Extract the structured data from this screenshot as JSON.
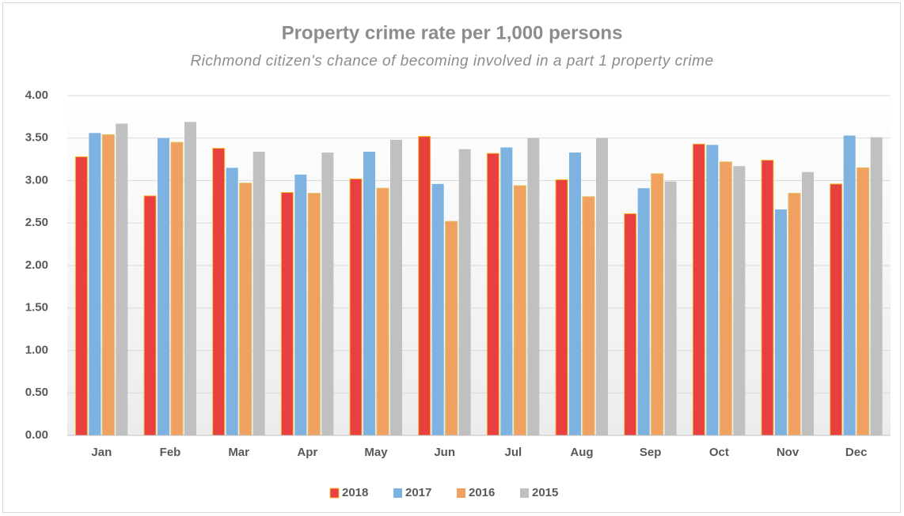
{
  "chart_data": {
    "type": "bar",
    "title": "Property crime rate per 1,000 persons",
    "subtitle": "Richmond citizen's chance of becoming involved in a part 1 property crime",
    "categories": [
      "Jan",
      "Feb",
      "Mar",
      "Apr",
      "May",
      "Jun",
      "Jul",
      "Aug",
      "Sep",
      "Oct",
      "Nov",
      "Dec"
    ],
    "series": [
      {
        "name": "2018",
        "color": "#e8403f",
        "values": [
          3.28,
          2.82,
          3.38,
          2.86,
          3.02,
          3.52,
          3.32,
          3.01,
          2.61,
          3.43,
          3.24,
          2.96
        ]
      },
      {
        "name": "2017",
        "color": "#7eb2e0",
        "values": [
          3.56,
          3.5,
          3.15,
          3.07,
          3.34,
          2.96,
          3.39,
          3.33,
          2.91,
          3.42,
          2.66,
          3.53
        ]
      },
      {
        "name": "2016",
        "color": "#f0a060",
        "values": [
          3.54,
          3.45,
          2.97,
          2.85,
          2.91,
          2.52,
          2.94,
          2.81,
          3.08,
          3.22,
          2.85,
          3.15
        ]
      },
      {
        "name": "2015",
        "color": "#c0c0c0",
        "values": [
          3.67,
          3.69,
          3.34,
          3.33,
          3.48,
          3.37,
          3.5,
          3.5,
          2.99,
          3.17,
          3.1,
          3.51
        ]
      }
    ],
    "ylim": [
      0,
      4
    ],
    "yticks": [
      {
        "value": 0,
        "label": "0.00"
      },
      {
        "value": 0.5,
        "label": "0.50"
      },
      {
        "value": 1,
        "label": "1.00"
      },
      {
        "value": 1.5,
        "label": "1.50"
      },
      {
        "value": 2,
        "label": "2.00"
      },
      {
        "value": 2.5,
        "label": "2.50"
      },
      {
        "value": 3,
        "label": "3.00"
      },
      {
        "value": 3.5,
        "label": "3.50"
      },
      {
        "value": 4,
        "label": "4.00"
      }
    ],
    "grid": true,
    "legend": "bottom"
  }
}
